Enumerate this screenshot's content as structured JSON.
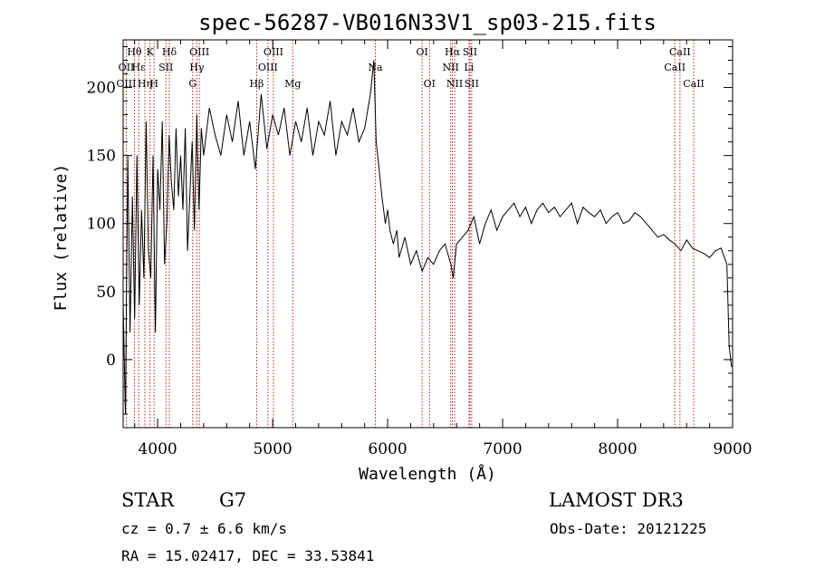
{
  "chart_data": {
    "type": "line",
    "title": "spec-56287-VB016N33V1_sp03-215.fits",
    "xlabel": "Wavelength (Å)",
    "ylabel": "Flux (relative)",
    "xlim": [
      3700,
      9000
    ],
    "ylim": [
      -50,
      235
    ],
    "xticks": [
      4000,
      5000,
      6000,
      7000,
      8000,
      9000
    ],
    "yticks": [
      0,
      50,
      100,
      150,
      200
    ],
    "grid": false,
    "series": [
      {
        "x": [
          3700,
          3720,
          3740,
          3760,
          3780,
          3800,
          3820,
          3840,
          3860,
          3880,
          3900,
          3920,
          3940,
          3960,
          3980,
          4000,
          4020,
          4040,
          4060,
          4080,
          4100,
          4120,
          4140,
          4160,
          4180,
          4200,
          4220,
          4240,
          4260,
          4280,
          4300,
          4320,
          4340,
          4360,
          4380,
          4400,
          4450,
          4500,
          4550,
          4600,
          4650,
          4700,
          4750,
          4800,
          4850,
          4900,
          4950,
          5000,
          5050,
          5100,
          5150,
          5200,
          5250,
          5300,
          5350,
          5400,
          5450,
          5500,
          5550,
          5600,
          5650,
          5700,
          5750,
          5800,
          5850,
          5880,
          5900,
          5920,
          5950,
          5980,
          6000,
          6020,
          6050,
          6080,
          6100,
          6150,
          6200,
          6250,
          6300,
          6350,
          6400,
          6450,
          6500,
          6550,
          6570,
          6600,
          6650,
          6700,
          6750,
          6800,
          6850,
          6900,
          6950,
          7000,
          7050,
          7100,
          7150,
          7200,
          7250,
          7300,
          7350,
          7400,
          7450,
          7500,
          7550,
          7600,
          7650,
          7700,
          7750,
          7800,
          7850,
          7900,
          7950,
          8000,
          8050,
          8100,
          8150,
          8200,
          8250,
          8300,
          8350,
          8400,
          8450,
          8500,
          8550,
          8600,
          8650,
          8700,
          8750,
          8800,
          8850,
          8900,
          8950,
          8970,
          8990,
          9000
        ],
        "y": [
          40,
          -40,
          150,
          20,
          120,
          30,
          150,
          40,
          110,
          60,
          175,
          80,
          60,
          150,
          20,
          140,
          110,
          175,
          70,
          100,
          165,
          130,
          110,
          170,
          120,
          150,
          110,
          170,
          80,
          120,
          160,
          95,
          180,
          110,
          170,
          150,
          185,
          165,
          150,
          180,
          160,
          190,
          150,
          175,
          140,
          195,
          155,
          180,
          165,
          185,
          150,
          175,
          160,
          185,
          150,
          175,
          165,
          190,
          150,
          175,
          165,
          185,
          160,
          170,
          195,
          220,
          160,
          145,
          120,
          100,
          110,
          95,
          85,
          95,
          75,
          90,
          70,
          80,
          65,
          75,
          70,
          80,
          85,
          70,
          60,
          85,
          90,
          95,
          105,
          85,
          100,
          110,
          95,
          105,
          110,
          115,
          105,
          112,
          100,
          110,
          115,
          108,
          112,
          105,
          110,
          115,
          100,
          112,
          108,
          105,
          110,
          100,
          105,
          108,
          100,
          102,
          108,
          105,
          100,
          95,
          90,
          92,
          88,
          85,
          80,
          88,
          82,
          80,
          78,
          75,
          80,
          82,
          70,
          10,
          -5,
          -5
        ]
      }
    ],
    "lines": [
      {
        "label": "Hθ",
        "wave": 3798,
        "row": 1
      },
      {
        "label": "OII",
        "wave": 3727,
        "row": 2
      },
      {
        "label": "OIII",
        "wave": 3727,
        "row": 3
      },
      {
        "label": "Hε",
        "wave": 3835,
        "row": 2
      },
      {
        "label": "Hη",
        "wave": 3889,
        "row": 3
      },
      {
        "label": "K",
        "wave": 3934,
        "row": 1
      },
      {
        "label": "H",
        "wave": 3969,
        "row": 3
      },
      {
        "label": "Hδ",
        "wave": 4102,
        "row": 1
      },
      {
        "label": "SII",
        "wave": 4072,
        "row": 2
      },
      {
        "label": "OIII",
        "wave": 4363,
        "row": 1
      },
      {
        "label": "Hγ",
        "wave": 4341,
        "row": 2
      },
      {
        "label": "G",
        "wave": 4305,
        "row": 3
      },
      {
        "label": "Hβ",
        "wave": 4861,
        "row": 3
      },
      {
        "label": "OIII",
        "wave": 5007,
        "row": 1
      },
      {
        "label": "OIII",
        "wave": 4959,
        "row": 2
      },
      {
        "label": "Mg",
        "wave": 5175,
        "row": 3
      },
      {
        "label": "Na",
        "wave": 5893,
        "row": 2
      },
      {
        "label": "OI",
        "wave": 6300,
        "row": 1
      },
      {
        "label": "OI",
        "wave": 6364,
        "row": 3
      },
      {
        "label": "Hα",
        "wave": 6563,
        "row": 1
      },
      {
        "label": "NII",
        "wave": 6548,
        "row": 2
      },
      {
        "label": "NII",
        "wave": 6583,
        "row": 3
      },
      {
        "label": "SII",
        "wave": 6716,
        "row": 1
      },
      {
        "label": "Li",
        "wave": 6708,
        "row": 2
      },
      {
        "label": "SII",
        "wave": 6731,
        "row": 3
      },
      {
        "label": "CaII",
        "wave": 8542,
        "row": 1
      },
      {
        "label": "CaII",
        "wave": 8498,
        "row": 2
      },
      {
        "label": "CaII",
        "wave": 8662,
        "row": 3
      }
    ],
    "line_color": "#b22222"
  },
  "info": {
    "class": "STAR",
    "subclass": "G7",
    "survey": "LAMOST DR3",
    "cz": "cz = 0.7 ± 6.6 km/s",
    "obs_date": "Obs-Date: 20121225",
    "coords": "RA =  15.02417, DEC =  33.53841"
  }
}
